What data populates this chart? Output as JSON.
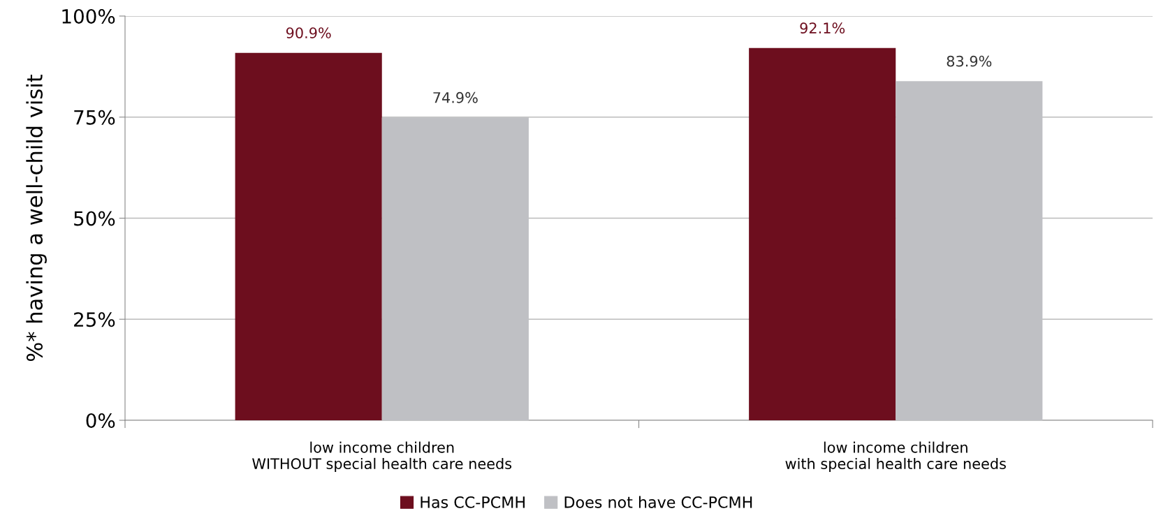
{
  "chart_data": {
    "type": "bar",
    "ylabel": "%* having a well-child visit",
    "categories": [
      "low income children\nWITHOUT special health care needs",
      "low income children\nwith special health care needs"
    ],
    "series": [
      {
        "name": "Has CC-PCMH",
        "color": "#6d0e1e",
        "values": [
          90.9,
          92.1
        ],
        "value_labels": [
          "90.9%",
          "92.1%"
        ]
      },
      {
        "name": "Does not have CC-PCMH",
        "color": "#bfc0c4",
        "values": [
          74.9,
          83.9
        ],
        "value_labels": [
          "74.9%",
          "83.9%"
        ]
      }
    ],
    "ylim": [
      0,
      100
    ],
    "yticks": [
      {
        "value": 0,
        "label": "0%"
      },
      {
        "value": 25,
        "label": "25%"
      },
      {
        "value": 50,
        "label": "50%"
      },
      {
        "value": 75,
        "label": "75%"
      },
      {
        "value": 100,
        "label": "100%"
      }
    ],
    "grid": "y",
    "legend": "bottom"
  }
}
